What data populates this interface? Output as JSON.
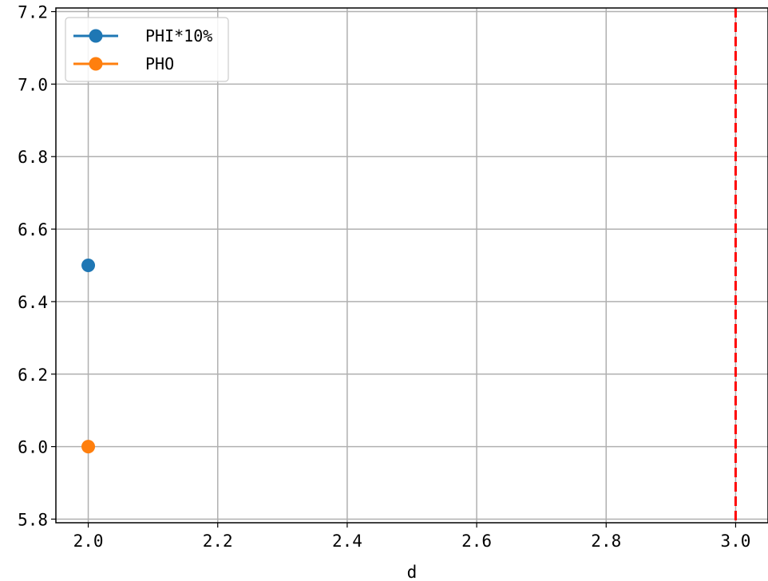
{
  "chart_data": {
    "type": "line",
    "xlabel": "d",
    "ylabel": "",
    "xlim": [
      1.95,
      3.05
    ],
    "ylim": [
      5.79,
      7.21
    ],
    "x_ticks": [
      2.0,
      2.2,
      2.4,
      2.6,
      2.8,
      3.0
    ],
    "x_tick_labels": [
      "2.0",
      "2.2",
      "2.4",
      "2.6",
      "2.8",
      "3.0"
    ],
    "y_ticks": [
      5.8,
      6.0,
      6.2,
      6.4,
      6.6,
      6.8,
      7.0,
      7.2
    ],
    "y_tick_labels": [
      "5.8",
      "6.0",
      "6.2",
      "6.4",
      "6.6",
      "6.8",
      "7.0",
      "7.2"
    ],
    "grid": true,
    "legend_position": "top-left",
    "series": [
      {
        "name": "PHI*10%",
        "color": "#1f77b4",
        "marker": "circle",
        "points": [
          {
            "x": 2.0,
            "y": 6.5
          }
        ]
      },
      {
        "name": "PHO",
        "color": "#ff7f0e",
        "marker": "circle",
        "points": [
          {
            "x": 2.0,
            "y": 6.0
          }
        ]
      }
    ],
    "reference_lines": [
      {
        "orientation": "vertical",
        "x": 3.0,
        "color": "#ff0000",
        "style": "dashed"
      }
    ]
  }
}
